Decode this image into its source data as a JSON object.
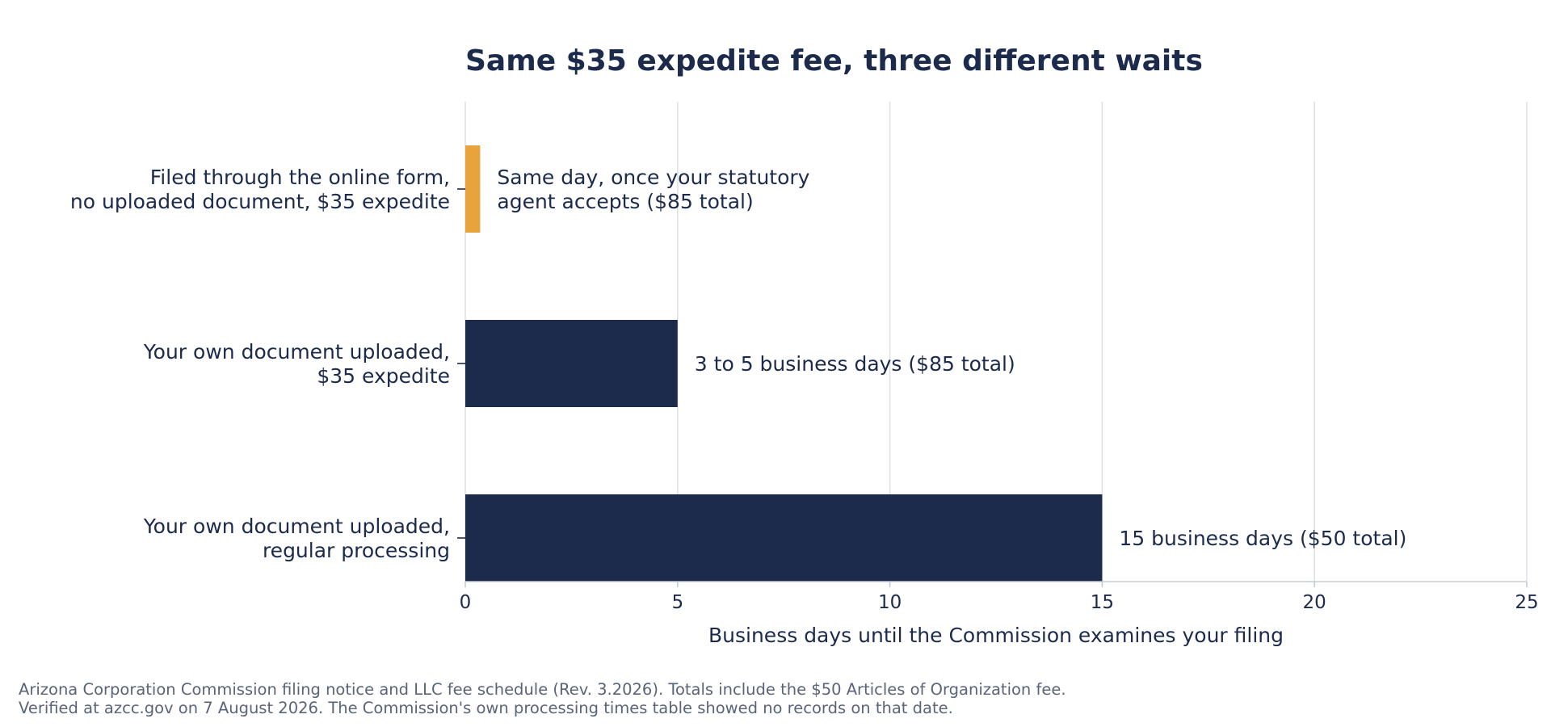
{
  "chart_data": {
    "type": "bar",
    "orientation": "horizontal",
    "title": "Same $35 expedite fee, three different waits",
    "xlabel": "Business days until the Commission examines your filing",
    "ylabel": "",
    "xlim": [
      0,
      25
    ],
    "xticks": [
      "0",
      "5",
      "10",
      "15",
      "20",
      "25"
    ],
    "grid": "vertical",
    "categories": [
      [
        "Filed through the online form,",
        "no uploaded document, $35 expedite"
      ],
      [
        "Your own document uploaded,",
        "$35 expedite"
      ],
      [
        "Your own document uploaded,",
        "regular processing"
      ]
    ],
    "values": [
      0.35,
      5,
      15
    ],
    "bar_colors": [
      "#E8A33D",
      "#1C2B4B",
      "#1C2B4B"
    ],
    "data_labels": [
      [
        "Same day, once your statutory",
        "agent accepts   ($85 total)"
      ],
      [
        "3 to 5 business days   ($85 total)"
      ],
      [
        "15 business days   ($50 total)"
      ]
    ]
  },
  "colors": {
    "text": "#1C2B4B",
    "grid": "#DDE1E8",
    "axis": "#C5CBD6",
    "footer": "#5A6478"
  },
  "footer": {
    "line1": "Arizona Corporation Commission filing notice and LLC fee schedule (Rev. 3.2026). Totals include the $50 Articles of Organization fee.",
    "line2": "Verified at azcc.gov on 7 August 2026. The Commission's own processing times table showed no records on that date."
  }
}
